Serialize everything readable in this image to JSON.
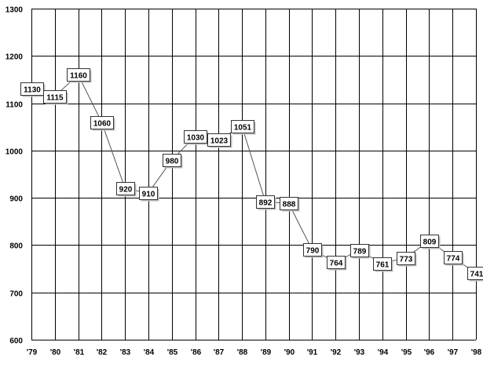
{
  "chart_data": {
    "type": "line",
    "categories": [
      "'79",
      "'80",
      "'81",
      "'82",
      "'83",
      "'84",
      "'85",
      "'86",
      "'87",
      "'88",
      "'89",
      "'90",
      "'91",
      "'92",
      "'93",
      "'94",
      "'95",
      "'96",
      "'97",
      "'98"
    ],
    "series": [
      {
        "values": [
          1130,
          1115,
          1160,
          1060,
          920,
          910,
          980,
          1030,
          1023,
          1051,
          892,
          888,
          790,
          764,
          789,
          761,
          773,
          809,
          774,
          741
        ],
        "labels": [
          "1130",
          "1115",
          "1160",
          "1060",
          "920",
          "910",
          "980",
          "1030",
          "1023",
          "1051",
          "892",
          "888",
          "790",
          "764",
          "789",
          "761",
          "773",
          "809",
          "774",
          "741"
        ]
      }
    ],
    "yticks": [
      600,
      700,
      800,
      900,
      1000,
      1100,
      1200,
      1300
    ],
    "ytick_labels": [
      "600",
      "700",
      "800",
      "900",
      "1000",
      "1100",
      "1200",
      "1300"
    ],
    "ylim": [
      600,
      1300
    ],
    "grid": true,
    "legend": "none",
    "colors": {
      "grid": "#000000",
      "line": "#555555",
      "label_box_border": "#333333",
      "label_box_shadow": "#bdbdbd"
    }
  }
}
